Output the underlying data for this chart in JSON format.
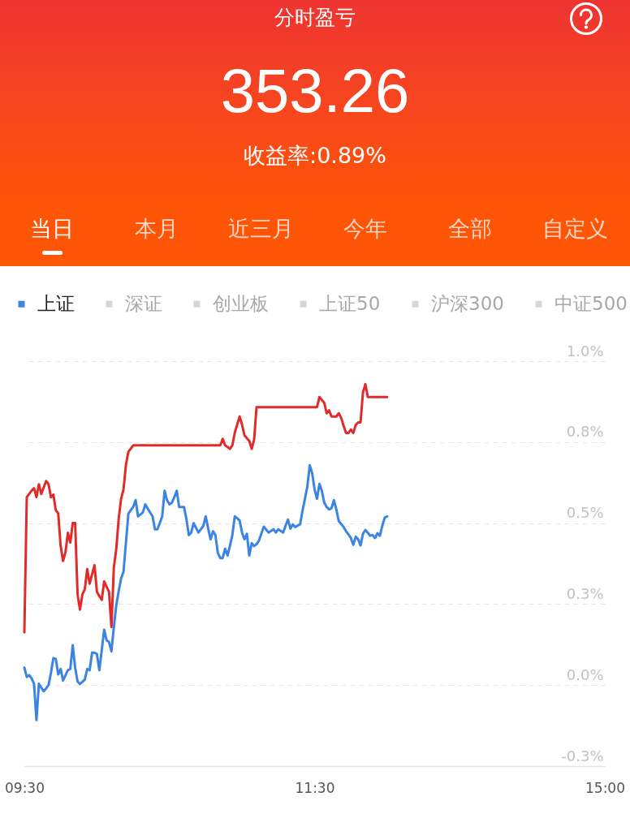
{
  "chart_data": {
    "type": "line",
    "title": "分时盈亏",
    "subtitle": "353.26",
    "annotations": [
      "收益率:0.89%",
      "当日",
      "本月",
      "近三月",
      "今年",
      "全部",
      "自定义"
    ],
    "categories": [
      "09:30",
      null,
      null,
      null,
      null,
      null,
      null,
      null,
      null,
      null,
      null,
      null,
      null,
      null,
      null,
      null,
      null,
      null,
      null,
      null,
      null,
      null,
      null,
      null,
      null,
      null,
      null,
      null,
      null,
      null,
      null,
      null,
      null,
      null,
      null,
      null,
      null,
      null,
      null,
      null,
      null,
      null,
      null,
      null,
      null,
      null,
      null,
      null,
      null,
      null,
      null,
      null,
      null,
      null,
      null,
      null,
      null,
      null,
      null,
      null,
      null,
      null,
      null,
      null,
      null,
      null,
      null,
      null,
      null,
      null,
      null,
      null,
      null,
      null,
      null,
      null,
      null,
      null,
      null,
      null,
      null,
      null,
      null,
      null,
      null,
      null,
      null,
      null,
      null,
      null,
      null,
      null,
      null,
      null,
      null,
      null,
      null,
      null,
      null,
      null,
      null,
      null,
      null,
      null,
      null,
      null,
      null,
      null,
      null,
      null,
      null,
      null,
      null,
      null,
      null,
      null,
      null,
      null,
      null,
      null,
      "11:30",
      null,
      null,
      null,
      null,
      null,
      null,
      null,
      null,
      null,
      null,
      null,
      null,
      null,
      null,
      null,
      null,
      null,
      null,
      null,
      null,
      null,
      null,
      null,
      null,
      null,
      null,
      null,
      null,
      null,
      null,
      null,
      null,
      null,
      null,
      null,
      null,
      null,
      null,
      null,
      null,
      null,
      null,
      null,
      null,
      null,
      null,
      null,
      null,
      null,
      null,
      null,
      null,
      null,
      null,
      null,
      null,
      null,
      null,
      null,
      null,
      null,
      null,
      null,
      null,
      null,
      null,
      null,
      null,
      null,
      null,
      null,
      null,
      null,
      null,
      null,
      null,
      null,
      null,
      null,
      null,
      null,
      null,
      null,
      null,
      null,
      null,
      null,
      null,
      null,
      null,
      null,
      null,
      null,
      null,
      null,
      null,
      null,
      null,
      null,
      null,
      null,
      null,
      null,
      null,
      null,
      null,
      null,
      null,
      null,
      null,
      null,
      null,
      null,
      null,
      null,
      null,
      null,
      null,
      null,
      "15:00"
    ],
    "series": [
      {
        "color": "#e12b2b",
        "values": [
          0.163,
          0.58,
          0.59,
          0.6,
          0.608,
          0.58,
          0.62,
          0.59,
          0.61,
          0.63,
          0.62,
          0.58,
          0.588,
          0.54,
          0.53,
          0.43,
          0.383,
          0.41,
          0.47,
          0.44,
          0.5,
          0.5,
          0.28,
          0.233,
          0.28,
          0.296,
          0.358,
          0.313,
          0.342,
          0.37,
          0.288,
          0.275,
          0.263,
          0.32,
          0.304,
          0.288,
          0.179,
          0.363,
          0.42,
          0.513,
          0.575,
          0.604,
          0.68,
          0.72,
          0.73,
          0.74,
          0.74,
          0.74,
          0.74,
          0.74,
          0.74,
          0.74,
          0.74,
          0.74,
          0.74,
          0.74,
          0.74,
          0.74,
          0.74,
          0.74,
          0.74,
          0.74,
          0.74,
          0.74,
          0.74,
          0.74,
          0.74,
          0.74,
          0.74,
          0.74,
          0.74,
          0.74,
          0.74,
          0.74,
          0.74,
          0.74,
          0.74,
          0.74,
          0.74,
          0.74,
          0.74,
          0.74,
          0.76,
          0.74,
          0.735,
          0.729,
          0.74,
          0.779,
          0.804,
          0.829,
          0.804,
          0.771,
          0.762,
          0.754,
          0.729,
          0.758,
          0.858,
          0.858,
          0.858,
          0.858,
          0.858,
          0.858,
          0.858,
          0.858,
          0.858,
          0.858,
          0.858,
          0.858,
          0.858,
          0.858,
          0.858,
          0.858,
          0.858,
          0.858,
          0.858,
          0.858,
          0.858,
          0.858,
          0.858,
          0.858,
          0.858,
          0.858,
          0.889,
          0.88,
          0.871,
          0.839,
          0.848,
          0.829,
          0.829,
          0.829,
          0.839,
          0.825,
          0.8,
          0.778,
          0.778,
          0.789,
          0.778,
          0.803,
          0.811,
          0.811,
          0.904,
          0.929,
          0.889,
          0.889,
          0.889,
          0.889,
          0.889,
          0.889,
          0.889,
          0.889,
          0.889,
          null,
          null,
          null,
          null,
          null,
          null,
          null,
          null,
          null,
          null,
          null,
          null,
          null,
          null,
          null,
          null,
          null,
          null,
          null,
          null,
          null,
          null,
          null,
          null,
          null,
          null,
          null,
          null,
          null,
          null,
          null,
          null,
          null,
          null,
          null,
          null,
          null,
          null,
          null,
          null,
          null,
          null,
          null,
          null,
          null,
          null,
          null,
          null,
          null,
          null,
          null,
          null,
          null,
          null,
          null,
          null,
          null,
          null,
          null,
          null,
          null,
          null,
          null,
          null,
          null,
          null,
          null,
          null,
          null,
          null,
          null,
          null,
          null,
          null,
          null,
          null,
          null,
          null,
          null,
          null,
          null,
          null,
          null,
          null,
          null,
          null,
          null,
          null,
          null,
          null
        ]
      },
      {
        "name": "上证",
        "color": "#3b84e2",
        "values": [
          0.054,
          0.025,
          0.031,
          0.021,
          0.004,
          -0.108,
          0.004,
          -0.008,
          -0.019,
          -0.01,
          0.0,
          0.038,
          0.083,
          0.081,
          0.033,
          0.05,
          0.014,
          0.03,
          0.046,
          0.05,
          0.123,
          0.054,
          0.011,
          0.003,
          0.01,
          0.017,
          0.05,
          0.046,
          0.1,
          0.1,
          0.096,
          0.046,
          0.108,
          0.171,
          0.138,
          0.133,
          0.104,
          0.179,
          0.246,
          0.29,
          0.329,
          0.35,
          0.44,
          0.529,
          0.54,
          0.55,
          0.571,
          0.521,
          0.527,
          0.533,
          0.558,
          0.545,
          0.533,
          0.521,
          0.481,
          0.481,
          0.5,
          0.521,
          0.6,
          0.571,
          0.558,
          0.563,
          0.58,
          0.6,
          0.55,
          0.55,
          0.55,
          0.513,
          0.463,
          0.471,
          0.5,
          0.485,
          0.471,
          0.481,
          0.492,
          0.521,
          0.483,
          0.45,
          0.475,
          0.463,
          0.408,
          0.392,
          0.392,
          0.421,
          0.4,
          0.43,
          0.463,
          0.521,
          0.515,
          0.508,
          0.471,
          0.45,
          0.467,
          0.4,
          0.438,
          0.429,
          0.435,
          0.446,
          0.468,
          0.489,
          0.48,
          0.471,
          0.476,
          0.481,
          0.471,
          0.481,
          0.476,
          0.471,
          0.492,
          0.511,
          0.483,
          0.496,
          0.488,
          0.492,
          0.496,
          0.538,
          0.575,
          0.613,
          0.679,
          0.654,
          0.604,
          0.575,
          0.621,
          0.6,
          0.563,
          0.55,
          0.542,
          0.546,
          0.571,
          0.542,
          0.506,
          0.497,
          0.488,
          0.475,
          0.465,
          0.454,
          0.433,
          0.458,
          0.45,
          0.431,
          0.467,
          0.479,
          0.47,
          0.461,
          0.463,
          0.454,
          0.469,
          0.461,
          0.492,
          0.517,
          0.521,
          null,
          null,
          null,
          null,
          null,
          null,
          null,
          null,
          null,
          null,
          null,
          null,
          null,
          null,
          null,
          null,
          null,
          null,
          null,
          null,
          null,
          null,
          null,
          null,
          null,
          null,
          null,
          null,
          null,
          null,
          null,
          null,
          null,
          null,
          null,
          null,
          null,
          null,
          null,
          null,
          null,
          null,
          null,
          null,
          null,
          null,
          null,
          null,
          null,
          null,
          null,
          null,
          null,
          null,
          null,
          null,
          null,
          null,
          null,
          null,
          null,
          null,
          null,
          null,
          null,
          null,
          null,
          null,
          null,
          null,
          null,
          null,
          null,
          null,
          null,
          null,
          null,
          null,
          null,
          null,
          null,
          null,
          null,
          null,
          null,
          null,
          null,
          null,
          null,
          null
        ]
      },
      {
        "name": "深证",
        "color": "#d6d6d6",
        "values": [
          null,
          null,
          null,
          null,
          null,
          null,
          null,
          null,
          null,
          null,
          null,
          null,
          null,
          null,
          null,
          null,
          null,
          null,
          null,
          null,
          null,
          null,
          null,
          null,
          null,
          null,
          null,
          null,
          null,
          null,
          null,
          null,
          null,
          null,
          null,
          null,
          null,
          null,
          null,
          null,
          null,
          null,
          null,
          null,
          null,
          null,
          null,
          null,
          null,
          null,
          null,
          null,
          null,
          null,
          null,
          null,
          null,
          null,
          null,
          null,
          null,
          null,
          null,
          null,
          null,
          null,
          null,
          null,
          null,
          null,
          null,
          null,
          null,
          null,
          null,
          null,
          null,
          null,
          null,
          null,
          null,
          null,
          null,
          null,
          null,
          null,
          null,
          null,
          null,
          null,
          null,
          null,
          null,
          null,
          null,
          null,
          null,
          null,
          null,
          null,
          null,
          null,
          null,
          null,
          null,
          null,
          null,
          null,
          null,
          null,
          null,
          null,
          null,
          null,
          null,
          null,
          null,
          null,
          null,
          null,
          null,
          null,
          null,
          null,
          null,
          null,
          null,
          null,
          null,
          null,
          null,
          null,
          null,
          null,
          null,
          null,
          null,
          null,
          null,
          null,
          null,
          null,
          null,
          null,
          null,
          null,
          null,
          null,
          null,
          null,
          null,
          null,
          null,
          null,
          null,
          null,
          null,
          null,
          null,
          null,
          null,
          null,
          null,
          null,
          null,
          null,
          null,
          null,
          null,
          null,
          null,
          null,
          null,
          null,
          null,
          null,
          null,
          null,
          null,
          null,
          null,
          null,
          null,
          null,
          null,
          null,
          null,
          null,
          null,
          null,
          null,
          null,
          null,
          null,
          null,
          null,
          null,
          null,
          null,
          null,
          null,
          null,
          null,
          null,
          null,
          null,
          null,
          null,
          null,
          null,
          null,
          null,
          null,
          null,
          null,
          null,
          null,
          null,
          null,
          null,
          null,
          null,
          null,
          null,
          null,
          null,
          null,
          null,
          null,
          null,
          null,
          null,
          null,
          null,
          null,
          null,
          null,
          null,
          null,
          null,
          null
        ]
      },
      {
        "name": "创业板",
        "color": "#d6d6d6",
        "values": [
          null,
          null,
          null,
          null,
          null,
          null,
          null,
          null,
          null,
          null,
          null,
          null,
          null,
          null,
          null,
          null,
          null,
          null,
          null,
          null,
          null,
          null,
          null,
          null,
          null,
          null,
          null,
          null,
          null,
          null,
          null,
          null,
          null,
          null,
          null,
          null,
          null,
          null,
          null,
          null,
          null,
          null,
          null,
          null,
          null,
          null,
          null,
          null,
          null,
          null,
          null,
          null,
          null,
          null,
          null,
          null,
          null,
          null,
          null,
          null,
          null,
          null,
          null,
          null,
          null,
          null,
          null,
          null,
          null,
          null,
          null,
          null,
          null,
          null,
          null,
          null,
          null,
          null,
          null,
          null,
          null,
          null,
          null,
          null,
          null,
          null,
          null,
          null,
          null,
          null,
          null,
          null,
          null,
          null,
          null,
          null,
          null,
          null,
          null,
          null,
          null,
          null,
          null,
          null,
          null,
          null,
          null,
          null,
          null,
          null,
          null,
          null,
          null,
          null,
          null,
          null,
          null,
          null,
          null,
          null,
          null,
          null,
          null,
          null,
          null,
          null,
          null,
          null,
          null,
          null,
          null,
          null,
          null,
          null,
          null,
          null,
          null,
          null,
          null,
          null,
          null,
          null,
          null,
          null,
          null,
          null,
          null,
          null,
          null,
          null,
          null,
          null,
          null,
          null,
          null,
          null,
          null,
          null,
          null,
          null,
          null,
          null,
          null,
          null,
          null,
          null,
          null,
          null,
          null,
          null,
          null,
          null,
          null,
          null,
          null,
          null,
          null,
          null,
          null,
          null,
          null,
          null,
          null,
          null,
          null,
          null,
          null,
          null,
          null,
          null,
          null,
          null,
          null,
          null,
          null,
          null,
          null,
          null,
          null,
          null,
          null,
          null,
          null,
          null,
          null,
          null,
          null,
          null,
          null,
          null,
          null,
          null,
          null,
          null,
          null,
          null,
          null,
          null,
          null,
          null,
          null,
          null,
          null,
          null,
          null,
          null,
          null,
          null,
          null,
          null,
          null,
          null,
          null,
          null,
          null,
          null,
          null,
          null,
          null,
          null,
          null
        ]
      },
      {
        "name": "上证50",
        "color": "#d6d6d6",
        "values": [
          null,
          null,
          null,
          null,
          null,
          null,
          null,
          null,
          null,
          null,
          null,
          null,
          null,
          null,
          null,
          null,
          null,
          null,
          null,
          null,
          null,
          null,
          null,
          null,
          null,
          null,
          null,
          null,
          null,
          null,
          null,
          null,
          null,
          null,
          null,
          null,
          null,
          null,
          null,
          null,
          null,
          null,
          null,
          null,
          null,
          null,
          null,
          null,
          null,
          null,
          null,
          null,
          null,
          null,
          null,
          null,
          null,
          null,
          null,
          null,
          null,
          null,
          null,
          null,
          null,
          null,
          null,
          null,
          null,
          null,
          null,
          null,
          null,
          null,
          null,
          null,
          null,
          null,
          null,
          null,
          null,
          null,
          null,
          null,
          null,
          null,
          null,
          null,
          null,
          null,
          null,
          null,
          null,
          null,
          null,
          null,
          null,
          null,
          null,
          null,
          null,
          null,
          null,
          null,
          null,
          null,
          null,
          null,
          null,
          null,
          null,
          null,
          null,
          null,
          null,
          null,
          null,
          null,
          null,
          null,
          null,
          null,
          null,
          null,
          null,
          null,
          null,
          null,
          null,
          null,
          null,
          null,
          null,
          null,
          null,
          null,
          null,
          null,
          null,
          null,
          null,
          null,
          null,
          null,
          null,
          null,
          null,
          null,
          null,
          null,
          null,
          null,
          null,
          null,
          null,
          null,
          null,
          null,
          null,
          null,
          null,
          null,
          null,
          null,
          null,
          null,
          null,
          null,
          null,
          null,
          null,
          null,
          null,
          null,
          null,
          null,
          null,
          null,
          null,
          null,
          null,
          null,
          null,
          null,
          null,
          null,
          null,
          null,
          null,
          null,
          null,
          null,
          null,
          null,
          null,
          null,
          null,
          null,
          null,
          null,
          null,
          null,
          null,
          null,
          null,
          null,
          null,
          null,
          null,
          null,
          null,
          null,
          null,
          null,
          null,
          null,
          null,
          null,
          null,
          null,
          null,
          null,
          null,
          null,
          null,
          null,
          null,
          null,
          null,
          null,
          null,
          null,
          null,
          null,
          null,
          null,
          null,
          null,
          null,
          null,
          null
        ]
      },
      {
        "name": "沪深300",
        "color": "#d6d6d6",
        "values": [
          null,
          null,
          null,
          null,
          null,
          null,
          null,
          null,
          null,
          null,
          null,
          null,
          null,
          null,
          null,
          null,
          null,
          null,
          null,
          null,
          null,
          null,
          null,
          null,
          null,
          null,
          null,
          null,
          null,
          null,
          null,
          null,
          null,
          null,
          null,
          null,
          null,
          null,
          null,
          null,
          null,
          null,
          null,
          null,
          null,
          null,
          null,
          null,
          null,
          null,
          null,
          null,
          null,
          null,
          null,
          null,
          null,
          null,
          null,
          null,
          null,
          null,
          null,
          null,
          null,
          null,
          null,
          null,
          null,
          null,
          null,
          null,
          null,
          null,
          null,
          null,
          null,
          null,
          null,
          null,
          null,
          null,
          null,
          null,
          null,
          null,
          null,
          null,
          null,
          null,
          null,
          null,
          null,
          null,
          null,
          null,
          null,
          null,
          null,
          null,
          null,
          null,
          null,
          null,
          null,
          null,
          null,
          null,
          null,
          null,
          null,
          null,
          null,
          null,
          null,
          null,
          null,
          null,
          null,
          null,
          null,
          null,
          null,
          null,
          null,
          null,
          null,
          null,
          null,
          null,
          null,
          null,
          null,
          null,
          null,
          null,
          null,
          null,
          null,
          null,
          null,
          null,
          null,
          null,
          null,
          null,
          null,
          null,
          null,
          null,
          null,
          null,
          null,
          null,
          null,
          null,
          null,
          null,
          null,
          null,
          null,
          null,
          null,
          null,
          null,
          null,
          null,
          null,
          null,
          null,
          null,
          null,
          null,
          null,
          null,
          null,
          null,
          null,
          null,
          null,
          null,
          null,
          null,
          null,
          null,
          null,
          null,
          null,
          null,
          null,
          null,
          null,
          null,
          null,
          null,
          null,
          null,
          null,
          null,
          null,
          null,
          null,
          null,
          null,
          null,
          null,
          null,
          null,
          null,
          null,
          null,
          null,
          null,
          null,
          null,
          null,
          null,
          null,
          null,
          null,
          null,
          null,
          null,
          null,
          null,
          null,
          null,
          null,
          null,
          null,
          null,
          null,
          null,
          null,
          null,
          null,
          null,
          null,
          null,
          null,
          null
        ]
      },
      {
        "name": "中证500",
        "color": "#d6d6d6",
        "values": [
          null,
          null,
          null,
          null,
          null,
          null,
          null,
          null,
          null,
          null,
          null,
          null,
          null,
          null,
          null,
          null,
          null,
          null,
          null,
          null,
          null,
          null,
          null,
          null,
          null,
          null,
          null,
          null,
          null,
          null,
          null,
          null,
          null,
          null,
          null,
          null,
          null,
          null,
          null,
          null,
          null,
          null,
          null,
          null,
          null,
          null,
          null,
          null,
          null,
          null,
          null,
          null,
          null,
          null,
          null,
          null,
          null,
          null,
          null,
          null,
          null,
          null,
          null,
          null,
          null,
          null,
          null,
          null,
          null,
          null,
          null,
          null,
          null,
          null,
          null,
          null,
          null,
          null,
          null,
          null,
          null,
          null,
          null,
          null,
          null,
          null,
          null,
          null,
          null,
          null,
          null,
          null,
          null,
          null,
          null,
          null,
          null,
          null,
          null,
          null,
          null,
          null,
          null,
          null,
          null,
          null,
          null,
          null,
          null,
          null,
          null,
          null,
          null,
          null,
          null,
          null,
          null,
          null,
          null,
          null,
          null,
          null,
          null,
          null,
          null,
          null,
          null,
          null,
          null,
          null,
          null,
          null,
          null,
          null,
          null,
          null,
          null,
          null,
          null,
          null,
          null,
          null,
          null,
          null,
          null,
          null,
          null,
          null,
          null,
          null,
          null,
          null,
          null,
          null,
          null,
          null,
          null,
          null,
          null,
          null,
          null,
          null,
          null,
          null,
          null,
          null,
          null,
          null,
          null,
          null,
          null,
          null,
          null,
          null,
          null,
          null,
          null,
          null,
          null,
          null,
          null,
          null,
          null,
          null,
          null,
          null,
          null,
          null,
          null,
          null,
          null,
          null,
          null,
          null,
          null,
          null,
          null,
          null,
          null,
          null,
          null,
          null,
          null,
          null,
          null,
          null,
          null,
          null,
          null,
          null,
          null,
          null,
          null,
          null,
          null,
          null,
          null,
          null,
          null,
          null,
          null,
          null,
          null,
          null,
          null,
          null,
          null,
          null,
          null,
          null,
          null,
          null,
          null,
          null,
          null,
          null,
          null,
          null,
          null,
          null,
          null
        ]
      }
    ],
    "ylim": [
      -0.25,
      1.0
    ],
    "yticks": [
      {
        "value": -0.25,
        "label": "-0.3%"
      },
      {
        "value": 0,
        "label": "0.0%"
      },
      {
        "value": 0.25,
        "label": "0.3%"
      },
      {
        "value": 0.5,
        "label": "0.5%"
      },
      {
        "value": 0.75,
        "label": "0.8%"
      },
      {
        "value": 1.0,
        "label": "1.0%"
      }
    ],
    "grid": "y",
    "legend": "top",
    "marker": "none",
    "line_style": "solid"
  }
}
